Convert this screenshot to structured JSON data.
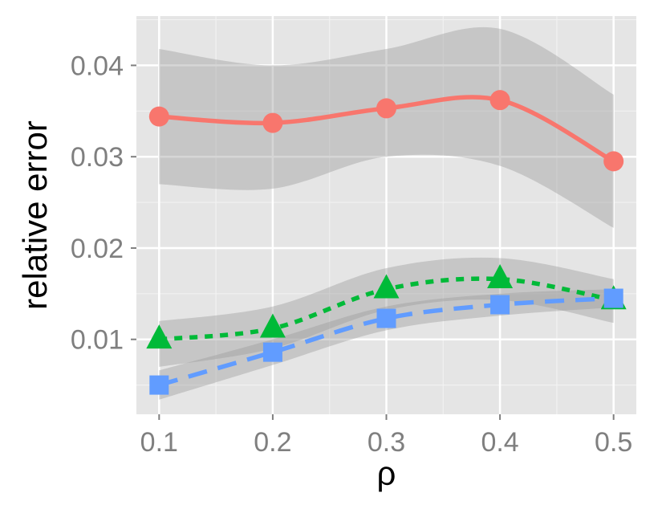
{
  "chart_data": {
    "type": "line",
    "title": "",
    "xlabel": "ρ",
    "ylabel": "relative error",
    "x": [
      0.1,
      0.2,
      0.3,
      0.4,
      0.5
    ],
    "xlim": [
      0.08,
      0.52
    ],
    "ylim": [
      0.0018,
      0.0454
    ],
    "x_ticks": [
      0.1,
      0.2,
      0.3,
      0.4,
      0.5
    ],
    "x_tick_labels": [
      "0.1",
      "0.2",
      "0.3",
      "0.4",
      "0.5"
    ],
    "y_ticks": [
      0.01,
      0.02,
      0.03,
      0.04
    ],
    "y_tick_labels": [
      "0.01",
      "0.02",
      "0.03",
      "0.04"
    ],
    "grid": true,
    "legend": "none",
    "series": [
      {
        "color": "#f8766d",
        "marker": "circle",
        "line_style": "solid",
        "values": [
          0.0344,
          0.0337,
          0.0353,
          0.0362,
          0.0295
        ],
        "band_lower": [
          0.027,
          0.0265,
          0.03,
          0.029,
          0.0222
        ],
        "band_upper": [
          0.0418,
          0.04,
          0.0418,
          0.044,
          0.0368
        ]
      },
      {
        "color": "#00ba38",
        "marker": "triangle",
        "line_style": "dotted",
        "values": [
          0.01,
          0.0112,
          0.0155,
          0.0166,
          0.0143
        ],
        "band_lower": [
          0.007,
          0.009,
          0.0132,
          0.0143,
          0.0118
        ],
        "band_upper": [
          0.012,
          0.0136,
          0.0178,
          0.0189,
          0.0166
        ]
      },
      {
        "color": "#619cff",
        "marker": "square",
        "line_style": "dashed",
        "values": [
          0.005,
          0.0086,
          0.0123,
          0.0138,
          0.0145
        ],
        "band_lower": [
          0.0034,
          0.0072,
          0.011,
          0.0126,
          0.0135
        ],
        "band_upper": [
          0.0066,
          0.01,
          0.0136,
          0.015,
          0.0155
        ]
      }
    ]
  }
}
